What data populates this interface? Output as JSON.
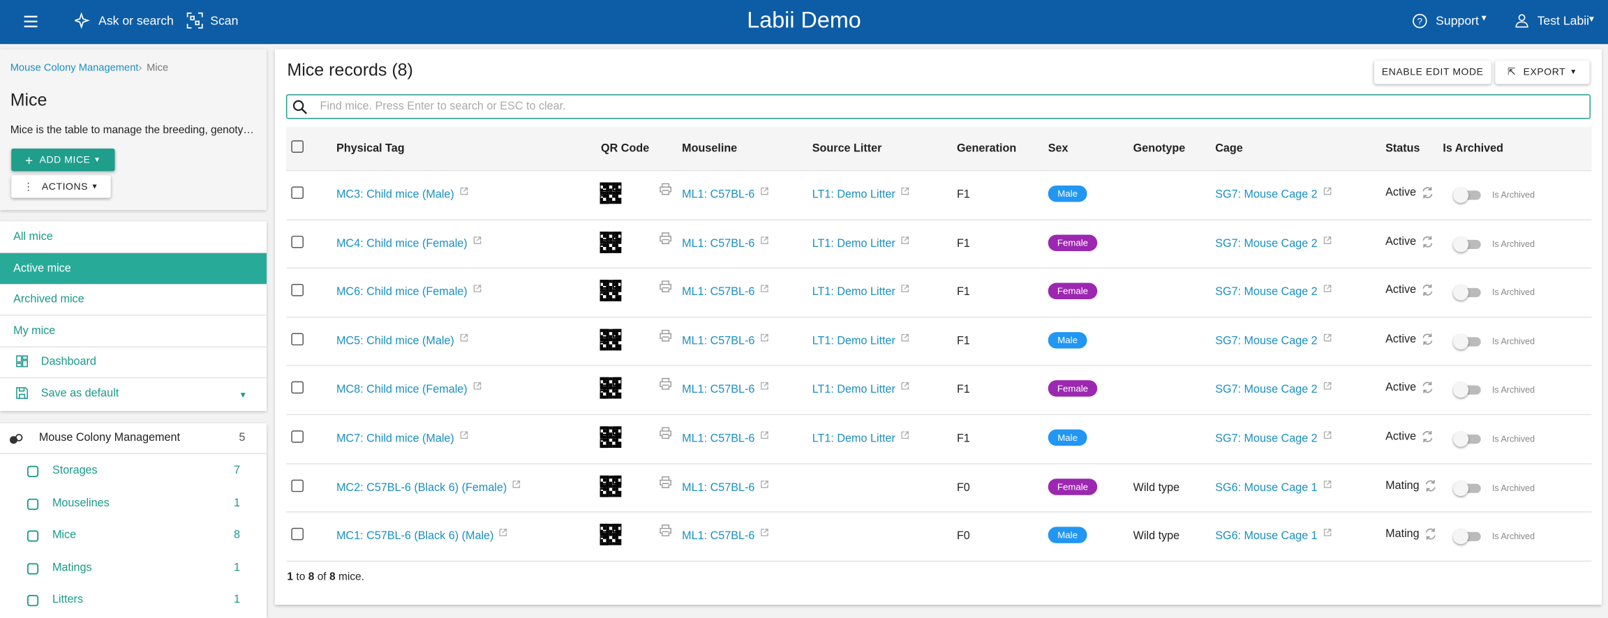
{
  "header": {
    "ask": "Ask or search",
    "scan": "Scan",
    "title": "Labii Demo",
    "support": "Support",
    "user": "Test Labii"
  },
  "sidebar": {
    "breadcrumb": [
      "Mouse Colony Management",
      "Mice"
    ],
    "title": "Mice",
    "description": "Mice is the table to manage the breeding, genoty…",
    "add_button": "ADD MICE",
    "actions_button": "ACTIONS",
    "views": [
      "All mice",
      "Active mice",
      "Archived mice",
      "My mice",
      "Dashboard",
      "Save as default"
    ],
    "nav": {
      "title": "Mouse Colony Management",
      "count": "5",
      "items": [
        {
          "label": "Storages",
          "count": "7"
        },
        {
          "label": "Mouselines",
          "count": "1"
        },
        {
          "label": "Mice",
          "count": "8"
        },
        {
          "label": "Matings",
          "count": "1"
        },
        {
          "label": "Litters",
          "count": "1"
        }
      ]
    }
  },
  "main": {
    "title": "Mice records (8)",
    "edit_button": "ENABLE EDIT MODE",
    "export_button": "EXPORT",
    "search_placeholder": "Find mice. Press Enter to search or ESC to clear.",
    "columns": [
      "Physical Tag",
      "QR Code",
      "Mouseline",
      "Source Litter",
      "Generation",
      "Sex",
      "Genotype",
      "Cage",
      "Status",
      "Is Archived"
    ],
    "rows": [
      {
        "tag": "MC3: Child mice (Male)",
        "mouseline": "ML1: C57BL-6",
        "litter": "LT1: Demo Litter",
        "generation": "F1",
        "sex": "Male",
        "cage": "SG7: Mouse Cage 2",
        "status": "Active",
        "archived": "Is Archived"
      },
      {
        "tag": "MC4: Child mice (Female)",
        "mouseline": "ML1: C57BL-6",
        "litter": "LT1: Demo Litter",
        "generation": "F1",
        "sex": "Female",
        "cage": "SG7: Mouse Cage 2",
        "status": "Active",
        "archived": "Is Archived"
      },
      {
        "tag": "MC6: Child mice (Female)",
        "mouseline": "ML1: C57BL-6",
        "litter": "LT1: Demo Litter",
        "generation": "F1",
        "sex": "Female",
        "cage": "SG7: Mouse Cage 2",
        "status": "Active",
        "archived": "Is Archived"
      },
      {
        "tag": "MC5: Child mice (Male)",
        "mouseline": "ML1: C57BL-6",
        "litter": "LT1: Demo Litter",
        "generation": "F1",
        "sex": "Male",
        "cage": "SG7: Mouse Cage 2",
        "status": "Active",
        "archived": "Is Archived"
      },
      {
        "tag": "MC8: Child mice (Female)",
        "mouseline": "ML1: C57BL-6",
        "litter": "LT1: Demo Litter",
        "generation": "F1",
        "sex": "Female",
        "cage": "SG7: Mouse Cage 2",
        "status": "Active",
        "archived": "Is Archived"
      },
      {
        "tag": "MC7: Child mice (Male)",
        "mouseline": "ML1: C57BL-6",
        "litter": "LT1: Demo Litter",
        "generation": "F1",
        "sex": "Male",
        "cage": "SG7: Mouse Cage 2",
        "status": "Active",
        "archived": "Is Archived"
      },
      {
        "tag": "MC2: C57BL-6 (Black 6) (Female)",
        "mouseline": "ML1: C57BL-6",
        "generation": "F0",
        "sex": "Female",
        "genotype": "Wild type",
        "cage": "SG6: Mouse Cage 1",
        "status": "Mating",
        "archived": "Is Archived"
      },
      {
        "tag": "MC1: C57BL-6 (Black 6) (Male)",
        "mouseline": "ML1: C57BL-6",
        "generation": "F0",
        "sex": "Male",
        "genotype": "Wild type",
        "cage": "SG6: Mouse Cage 1",
        "status": "Mating",
        "archived": "Is Archived"
      }
    ],
    "footer": {
      "start": "1",
      "to": "to",
      "end": "8",
      "of": "of",
      "total": "8",
      "suffix": "mice."
    }
  }
}
